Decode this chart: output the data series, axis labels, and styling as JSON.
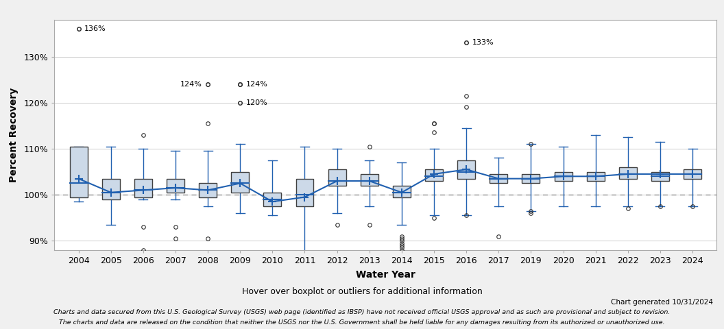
{
  "years": [
    2004,
    2005,
    2006,
    2007,
    2008,
    2009,
    2010,
    2011,
    2012,
    2013,
    2014,
    2015,
    2016,
    2017,
    2019,
    2020,
    2021,
    2022,
    2023,
    2024
  ],
  "box_data": {
    "2004": {
      "q1": 99.5,
      "median": 102.5,
      "q3": 110.5,
      "whisker_low": 98.5,
      "whisker_high": 110.5,
      "mean": 103.5,
      "outliers_low": [],
      "outliers_high": [
        136
      ]
    },
    "2005": {
      "q1": 99.0,
      "median": 100.5,
      "q3": 103.5,
      "whisker_low": 93.5,
      "whisker_high": 110.5,
      "mean": 100.5,
      "outliers_low": [],
      "outliers_high": []
    },
    "2006": {
      "q1": 99.5,
      "median": 101.0,
      "q3": 103.5,
      "whisker_low": 99.0,
      "whisker_high": 110.0,
      "mean": 101.0,
      "outliers_low": [
        93.0,
        88.0
      ],
      "outliers_high": [
        113.0
      ]
    },
    "2007": {
      "q1": 100.5,
      "median": 101.5,
      "q3": 103.5,
      "whisker_low": 99.0,
      "whisker_high": 109.5,
      "mean": 101.5,
      "outliers_low": [
        93.0,
        90.5
      ],
      "outliers_high": []
    },
    "2008": {
      "q1": 99.5,
      "median": 101.0,
      "q3": 102.5,
      "whisker_low": 97.5,
      "whisker_high": 109.5,
      "mean": 101.0,
      "outliers_low": [
        90.5
      ],
      "outliers_high": [
        115.5,
        124.0
      ]
    },
    "2009": {
      "q1": 100.5,
      "median": 102.5,
      "q3": 105.0,
      "whisker_low": 96.0,
      "whisker_high": 111.0,
      "mean": 102.5,
      "outliers_low": [],
      "outliers_high": [
        120.0,
        124.0,
        124.0
      ]
    },
    "2010": {
      "q1": 97.5,
      "median": 99.0,
      "q3": 100.5,
      "whisker_low": 95.5,
      "whisker_high": 107.5,
      "mean": 98.5,
      "outliers_low": [],
      "outliers_high": []
    },
    "2011": {
      "q1": 97.5,
      "median": 100.0,
      "q3": 103.5,
      "whisker_low": 87.5,
      "whisker_high": 110.5,
      "mean": 99.5,
      "outliers_low": [],
      "outliers_high": []
    },
    "2012": {
      "q1": 102.0,
      "median": 103.0,
      "q3": 105.5,
      "whisker_low": 96.0,
      "whisker_high": 110.0,
      "mean": 103.0,
      "outliers_low": [
        93.5
      ],
      "outliers_high": []
    },
    "2013": {
      "q1": 102.0,
      "median": 103.0,
      "q3": 104.5,
      "whisker_low": 97.5,
      "whisker_high": 107.5,
      "mean": 103.0,
      "outliers_low": [
        93.5
      ],
      "outliers_high": [
        110.5
      ]
    },
    "2014": {
      "q1": 99.5,
      "median": 100.5,
      "q3": 102.0,
      "whisker_low": 93.5,
      "whisker_high": 107.0,
      "mean": 100.5,
      "outliers_low": [
        91.0,
        90.5,
        90.0,
        89.5,
        89.0,
        88.5,
        88.0
      ],
      "outliers_high": []
    },
    "2015": {
      "q1": 103.0,
      "median": 104.0,
      "q3": 105.5,
      "whisker_low": 95.5,
      "whisker_high": 110.0,
      "mean": 104.5,
      "outliers_low": [
        95.0
      ],
      "outliers_high": [
        113.5,
        115.5,
        115.5
      ]
    },
    "2016": {
      "q1": 103.5,
      "median": 105.0,
      "q3": 107.5,
      "whisker_low": 95.5,
      "whisker_high": 114.5,
      "mean": 105.5,
      "outliers_low": [
        95.5
      ],
      "outliers_high": [
        121.5,
        119.0,
        133.0
      ]
    },
    "2017": {
      "q1": 102.5,
      "median": 103.5,
      "q3": 104.5,
      "whisker_low": 97.5,
      "whisker_high": 108.0,
      "mean": 103.5,
      "outliers_low": [
        91.0
      ],
      "outliers_high": []
    },
    "2019": {
      "q1": 102.5,
      "median": 103.5,
      "q3": 104.5,
      "whisker_low": 96.5,
      "whisker_high": 111.0,
      "mean": 103.5,
      "outliers_low": [
        96.5,
        96.0
      ],
      "outliers_high": [
        111.0
      ]
    },
    "2020": {
      "q1": 103.0,
      "median": 104.0,
      "q3": 105.0,
      "whisker_low": 97.5,
      "whisker_high": 110.5,
      "mean": 104.0,
      "outliers_low": [],
      "outliers_high": []
    },
    "2021": {
      "q1": 103.0,
      "median": 104.0,
      "q3": 105.0,
      "whisker_low": 97.5,
      "whisker_high": 113.0,
      "mean": 104.0,
      "outliers_low": [],
      "outliers_high": []
    },
    "2022": {
      "q1": 103.5,
      "median": 104.5,
      "q3": 106.0,
      "whisker_low": 97.5,
      "whisker_high": 112.5,
      "mean": 104.5,
      "outliers_low": [
        97.0
      ],
      "outliers_high": []
    },
    "2023": {
      "q1": 103.0,
      "median": 104.0,
      "q3": 105.0,
      "whisker_low": 97.5,
      "whisker_high": 111.5,
      "mean": 104.5,
      "outliers_low": [
        97.5
      ],
      "outliers_high": []
    },
    "2024": {
      "q1": 103.5,
      "median": 104.5,
      "q3": 105.5,
      "whisker_low": 97.5,
      "whisker_high": 110.0,
      "mean": 104.5,
      "outliers_low": [
        97.5
      ],
      "outliers_high": []
    }
  },
  "mean_line_values": [
    103.5,
    100.5,
    101.0,
    101.5,
    101.0,
    102.5,
    98.5,
    99.5,
    103.0,
    103.0,
    100.5,
    104.5,
    105.5,
    103.5,
    103.5,
    104.0,
    104.0,
    104.5,
    104.5,
    104.5
  ],
  "ylim": [
    88.0,
    138.0
  ],
  "yticks": [
    90,
    100,
    110,
    120,
    130
  ],
  "ytick_labels": [
    "90%",
    "100%",
    "110%",
    "120%",
    "130%"
  ],
  "xlabel": "Water Year",
  "ylabel": "Percent Recovery",
  "reference_line": 100,
  "box_color": "#ccd9e8",
  "box_edge_color": "#404040",
  "whisker_color": "#2060b0",
  "median_color": "#2060b0",
  "mean_color": "#2060b0",
  "mean_line_color": "#2060b0",
  "outlier_marker_color": "#303030",
  "reference_line_color": "#909090",
  "grid_color": "#cccccc",
  "background_color": "#f0f0f0",
  "plot_bg_color": "#ffffff",
  "footer_text1": "Hover over boxplot or outliers for additional information",
  "footer_text2": "Chart generated 10/31/2024",
  "footer_text3": "Charts and data secured from this U.S. Geological Survey (USGS) web page (identified as IBSP) have not received official USGS approval and as such are provisional and subject to revision.",
  "footer_text4": "The charts and data are released on the condition that neither the USGS nor the U.S. Government shall be held liable for any damages resulting from its authorized or unauthorized use.",
  "box_width": 0.55,
  "cap_ratio": 0.5
}
